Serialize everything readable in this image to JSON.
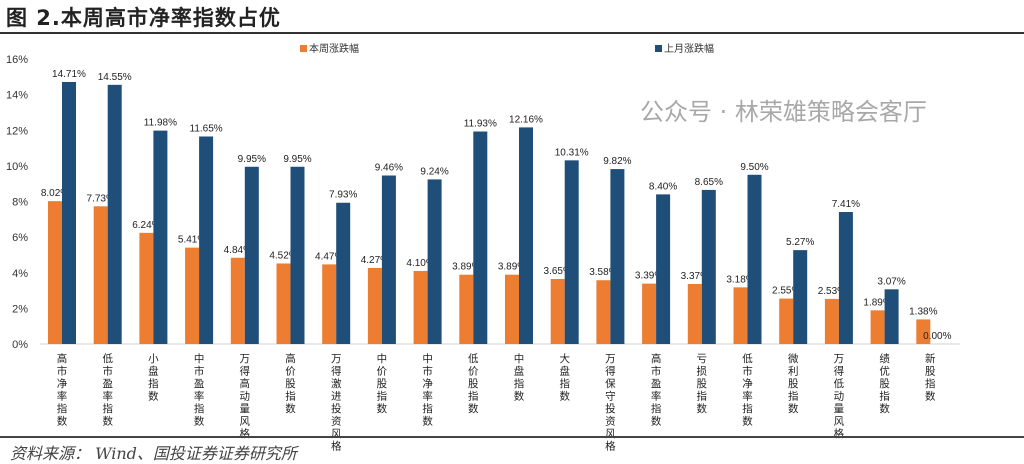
{
  "title": "图 2.本周高市净率指数占优",
  "source": "资料来源： Wind、国投证券证券研究所",
  "watermark": "公众号 · 林荣雄策略会客厅",
  "chart_data": {
    "type": "bar",
    "title": "图 2.本周高市净率指数占优",
    "xlabel": "",
    "ylabel": "",
    "ylim": [
      0,
      16
    ],
    "yticks": [
      0,
      2,
      4,
      6,
      8,
      10,
      12,
      14,
      16
    ],
    "ytick_labels": [
      "0%",
      "2%",
      "4%",
      "6%",
      "8%",
      "10%",
      "12%",
      "14%",
      "16%"
    ],
    "legend_position": "top",
    "grid": false,
    "categories": [
      "高市净率指数",
      "低市盈率指数",
      "小盘指数",
      "中市盈率指数",
      "万得高动量风格",
      "高价股指数",
      "万得激进投资风格",
      "中价股指数",
      "中市净率指数",
      "低价股指数",
      "中盘指数",
      "大盘指数",
      "万得保守投资风格",
      "高市盈率指数",
      "亏损股指数",
      "低市净率指数",
      "微利股指数",
      "万得低动量风格",
      "绩优股指数",
      "新股指数"
    ],
    "series": [
      {
        "name": "本周涨跌幅",
        "color": "#ED7D31",
        "values": [
          8.02,
          7.73,
          6.24,
          5.41,
          4.84,
          4.52,
          4.47,
          4.27,
          4.1,
          3.89,
          3.89,
          3.65,
          3.58,
          3.39,
          3.37,
          3.18,
          2.55,
          2.53,
          1.89,
          1.38
        ],
        "labels": [
          "8.02%",
          "7.73%",
          "6.24%",
          "5.41%",
          "4.84%",
          "4.52%",
          "4.47%",
          "4.27%",
          "4.10%",
          "3.89%",
          "3.89%",
          "3.65%",
          "3.58%",
          "3.39%",
          "3.37%",
          "3.18%",
          "2.55%",
          "2.53%",
          "1.89%",
          "1.38%"
        ]
      },
      {
        "name": "上月涨跌幅",
        "color": "#1F4E79",
        "values": [
          14.71,
          14.55,
          11.98,
          11.65,
          9.95,
          9.95,
          7.93,
          9.46,
          9.24,
          11.93,
          12.16,
          10.31,
          9.82,
          8.4,
          8.65,
          9.5,
          5.27,
          7.41,
          3.07,
          0.0
        ],
        "labels": [
          "14.71%",
          "14.55%",
          "11.98%",
          "11.65%",
          "9.95%",
          "9.95%",
          "7.93%",
          "9.46%",
          "9.24%",
          "11.93%",
          "12.16%",
          "10.31%",
          "9.82%",
          "8.40%",
          "8.65%",
          "9.50%",
          "5.27%",
          "7.41%",
          "3.07%",
          "0.00%"
        ]
      }
    ]
  }
}
